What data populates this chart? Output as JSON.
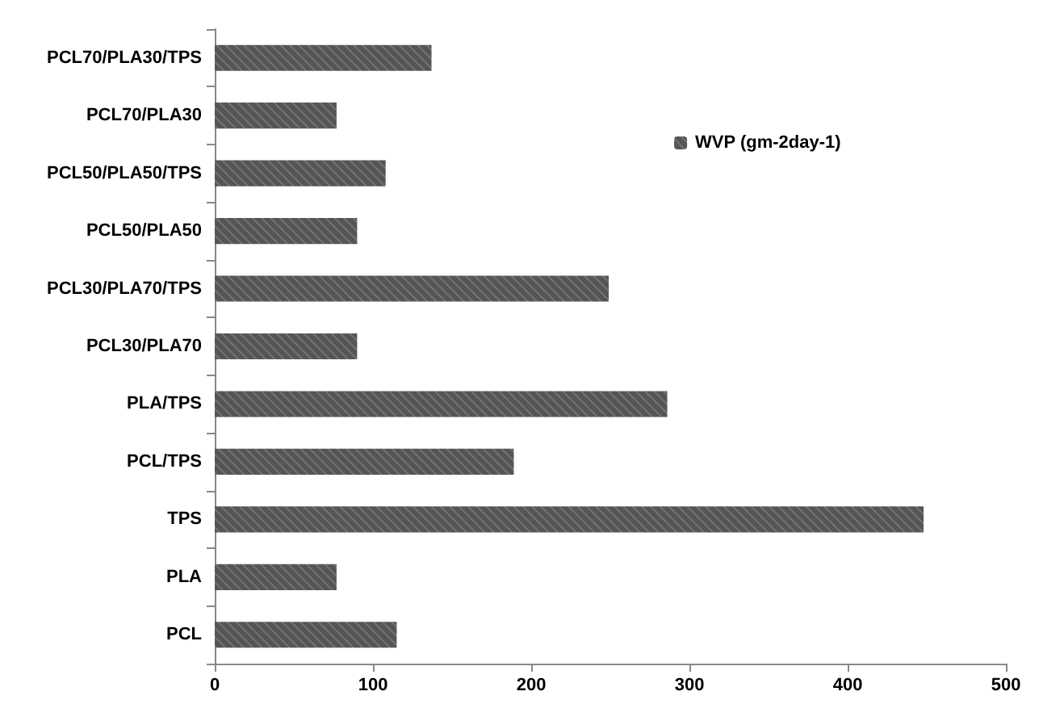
{
  "chart_data": {
    "type": "bar",
    "orientation": "horizontal",
    "categories": [
      "PCL70/PLA30/TPS",
      "PCL70/PLA30",
      "PCL50/PLA50/TPS",
      "PCL50/PLA50",
      "PCL30/PLA70/TPS",
      "PCL30/PLA70",
      "PLA/TPS",
      "PCL/TPS",
      "TPS",
      "PLA",
      "PCL"
    ],
    "series": [
      {
        "name": "WVP (gm-2day-1)",
        "color": "#555555",
        "values": [
          137,
          77,
          108,
          90,
          249,
          90,
          286,
          189,
          448,
          77,
          115
        ]
      }
    ],
    "xlim": [
      0,
      500
    ],
    "xticks": [
      0,
      100,
      200,
      300,
      400,
      500
    ],
    "grid": false,
    "legend": "top right"
  }
}
